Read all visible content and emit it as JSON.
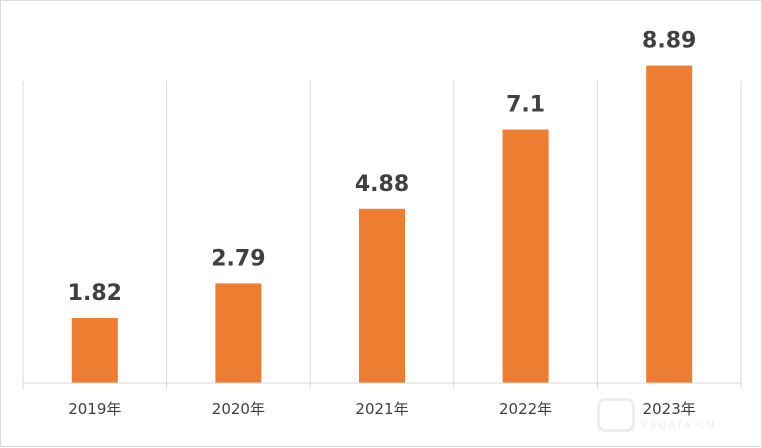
{
  "chart_data": {
    "type": "bar",
    "categories": [
      "2019年",
      "2020年",
      "2021年",
      "2022年",
      "2023年"
    ],
    "values": [
      1.82,
      2.79,
      4.88,
      7.1,
      8.89
    ],
    "value_labels": [
      "1.82",
      "2.79",
      "4.88",
      "7.1",
      "8.89"
    ],
    "title": "",
    "xlabel": "",
    "ylabel": "",
    "ylim": [
      0,
      10
    ],
    "grid": "vertical separators",
    "legend": "none",
    "bar_color": "#ED7D31",
    "label_color": "#404040"
  },
  "watermark": {
    "text": "VBDATA.CN"
  }
}
